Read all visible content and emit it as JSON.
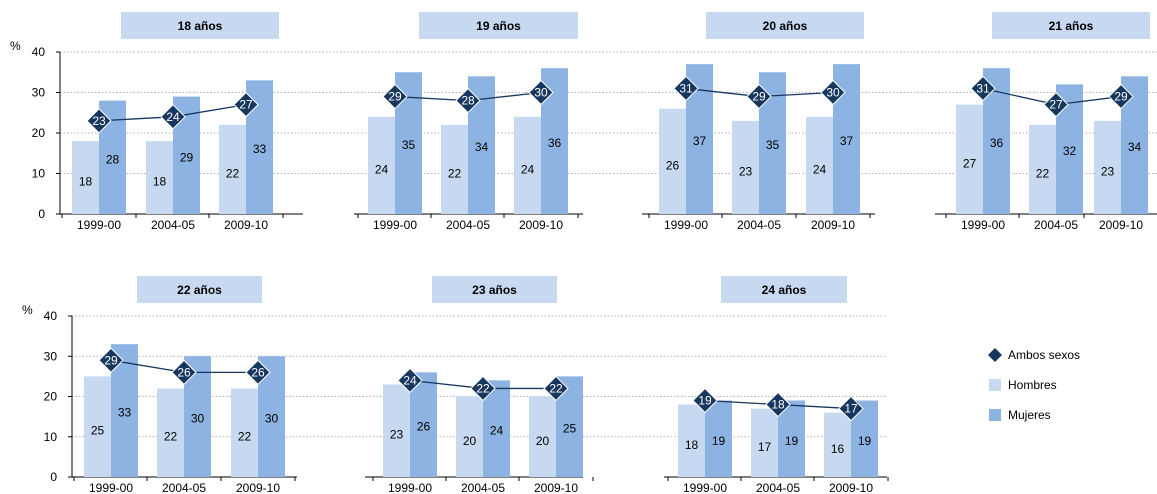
{
  "y_unit": "%",
  "y_ticks": [
    "0",
    "10",
    "20",
    "30",
    "40"
  ],
  "legend": [
    {
      "label": "Ambos sexos",
      "color": "#17375e",
      "kind": "diamond"
    },
    {
      "label": "Hombres",
      "color": "#c6d9f0",
      "kind": "bar"
    },
    {
      "label": "Mujeres",
      "color": "#8db3e2",
      "kind": "bar"
    }
  ],
  "colors": {
    "hombres": "#c6d9f0",
    "mujeres": "#8db3e2",
    "ambos": "#17375e",
    "title_box": "#c6d9f0",
    "grid": "#999999"
  },
  "chart_data": {
    "type": "bar",
    "ylim": [
      0,
      40
    ],
    "categories": [
      "1999-00",
      "2004-05",
      "2009-10"
    ],
    "panels": [
      {
        "title": "18 años",
        "hombres": [
          18,
          18,
          22
        ],
        "mujeres": [
          28,
          29,
          33
        ],
        "ambos": [
          23,
          24,
          27
        ]
      },
      {
        "title": "19 años",
        "hombres": [
          24,
          22,
          24
        ],
        "mujeres": [
          35,
          34,
          36
        ],
        "ambos": [
          29,
          28,
          30
        ]
      },
      {
        "title": "20 años",
        "hombres": [
          26,
          23,
          24
        ],
        "mujeres": [
          37,
          35,
          37
        ],
        "ambos": [
          31,
          29,
          30
        ]
      },
      {
        "title": "21 años",
        "hombres": [
          27,
          22,
          23
        ],
        "mujeres": [
          36,
          32,
          34
        ],
        "ambos": [
          31,
          27,
          29
        ]
      },
      {
        "title": "22 años",
        "hombres": [
          25,
          22,
          22
        ],
        "mujeres": [
          33,
          30,
          30
        ],
        "ambos": [
          29,
          26,
          26
        ]
      },
      {
        "title": "23 años",
        "hombres": [
          23,
          20,
          20
        ],
        "mujeres": [
          26,
          24,
          25
        ],
        "ambos": [
          24,
          22,
          22
        ]
      },
      {
        "title": "24 años",
        "hombres": [
          18,
          17,
          16
        ],
        "mujeres": [
          19,
          19,
          19
        ],
        "ambos": [
          19,
          18,
          17
        ]
      }
    ]
  }
}
